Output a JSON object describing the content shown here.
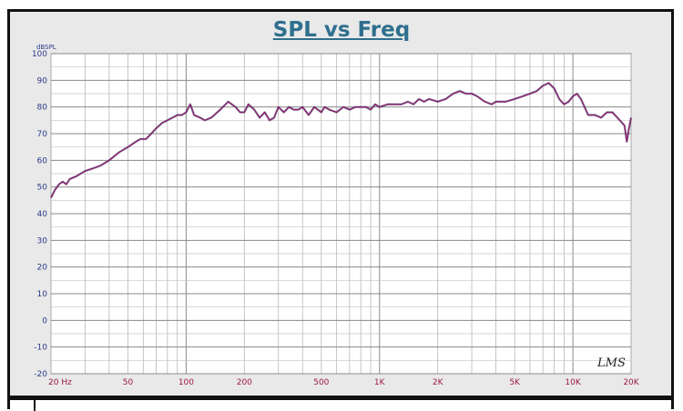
{
  "chart_data": {
    "type": "line",
    "title": "SPL vs Freq",
    "ylabel": "dBSPL",
    "xlabel": "",
    "x_scale": "log",
    "xlim": [
      20,
      20000
    ],
    "ylim": [
      -20,
      100
    ],
    "grid": true,
    "legend": "none",
    "yticks": [
      100,
      90,
      80,
      70,
      60,
      50,
      40,
      30,
      20,
      10,
      0,
      -10,
      -20
    ],
    "xtick_labels": [
      {
        "value": 20,
        "label": "20  Hz"
      },
      {
        "value": 50,
        "label": "50"
      },
      {
        "value": 100,
        "label": "100"
      },
      {
        "value": 200,
        "label": "200"
      },
      {
        "value": 500,
        "label": "500"
      },
      {
        "value": 1000,
        "label": "1K"
      },
      {
        "value": 2000,
        "label": "2K"
      },
      {
        "value": 5000,
        "label": "5K"
      },
      {
        "value": 10000,
        "label": "10K"
      },
      {
        "value": 20000,
        "label": "20K"
      }
    ],
    "watermark": "LMS",
    "series": [
      {
        "color": "#8a1f6e",
        "x": [
          20,
          21,
          22,
          23,
          24,
          25,
          27,
          30,
          33,
          36,
          40,
          45,
          50,
          55,
          58,
          62,
          66,
          70,
          75,
          80,
          85,
          90,
          95,
          100,
          105,
          110,
          118,
          125,
          135,
          150,
          165,
          180,
          190,
          200,
          210,
          225,
          240,
          255,
          270,
          285,
          300,
          320,
          340,
          360,
          380,
          400,
          430,
          460,
          500,
          520,
          550,
          600,
          650,
          700,
          750,
          800,
          850,
          900,
          950,
          1000,
          1100,
          1200,
          1300,
          1400,
          1500,
          1600,
          1700,
          1800,
          2000,
          2200,
          2400,
          2600,
          2800,
          3000,
          3200,
          3500,
          3800,
          4000,
          4500,
          5000,
          5500,
          6000,
          6500,
          7000,
          7500,
          8000,
          8500,
          9000,
          9500,
          10000,
          10500,
          11000,
          12000,
          13000,
          14000,
          15000,
          16000,
          17000,
          18000,
          18500,
          19000,
          19500,
          20000
        ],
        "y": [
          46,
          49,
          51,
          52,
          51,
          53,
          54,
          56,
          57,
          58,
          60,
          63,
          65,
          67,
          68,
          68,
          70,
          72,
          74,
          75,
          76,
          77,
          77,
          78,
          81,
          77,
          76,
          75,
          76,
          79,
          82,
          80,
          78,
          78,
          81,
          79,
          76,
          78,
          75,
          76,
          80,
          78,
          80,
          79,
          79,
          80,
          77,
          80,
          78,
          80,
          79,
          78,
          80,
          79,
          80,
          80,
          80,
          79,
          81,
          80,
          81,
          81,
          81,
          82,
          81,
          83,
          82,
          83,
          82,
          83,
          85,
          86,
          85,
          85,
          84,
          82,
          81,
          82,
          82,
          83,
          84,
          85,
          86,
          88,
          89,
          87,
          83,
          81,
          82,
          84,
          85,
          83,
          77,
          77,
          76,
          78,
          78,
          76,
          74,
          73,
          67,
          72,
          76
        ]
      }
    ]
  }
}
